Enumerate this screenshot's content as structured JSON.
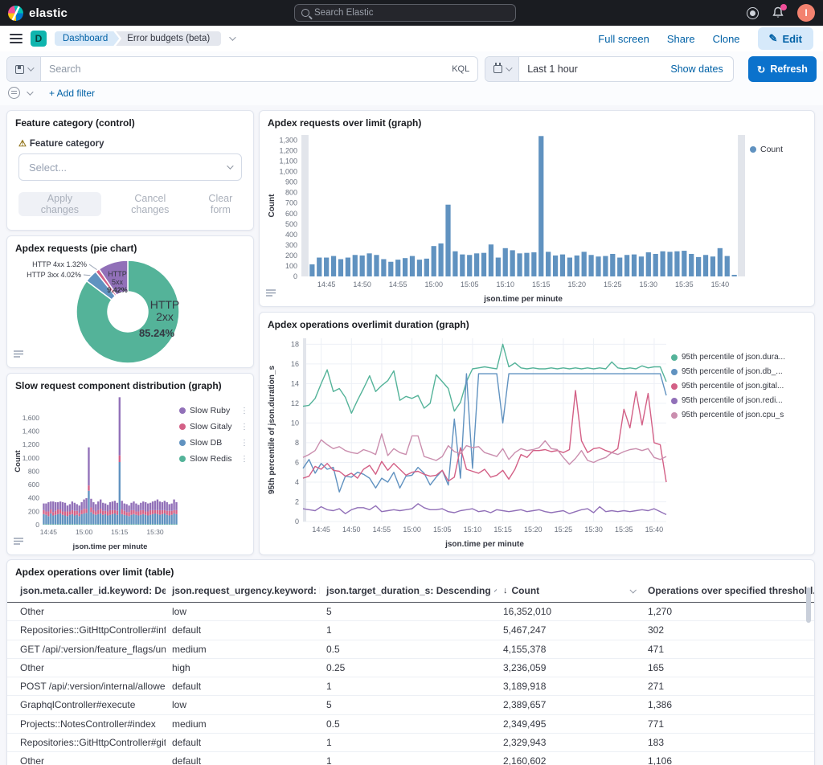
{
  "header": {
    "brand": "elastic",
    "search_placeholder": "Search Elastic",
    "avatar_initial": "I"
  },
  "navbar": {
    "space_badge": "D",
    "breadcrumbs": [
      "Dashboard",
      "Error budgets (beta)"
    ],
    "actions": {
      "full_screen": "Full screen",
      "share": "Share",
      "clone": "Clone",
      "edit": "Edit"
    }
  },
  "query_bar": {
    "search_placeholder": "Search",
    "kql_label": "KQL",
    "time_range": "Last 1 hour",
    "show_dates_label": "Show dates",
    "refresh_label": "Refresh",
    "add_filter_label": "+ Add filter"
  },
  "panels": {
    "control": {
      "title": "Feature category (control)",
      "field_label": "Feature category",
      "select_placeholder": "Select...",
      "apply_label": "Apply changes",
      "cancel_label": "Cancel changes",
      "clear_label": "Clear form"
    }
  },
  "chart_data": [
    {
      "type": "bar",
      "title": "Apdex requests over limit (graph)",
      "ylabel": "Count",
      "xlabel": "json.time per minute",
      "ylim": [
        0,
        1350
      ],
      "ystep": 100,
      "ymax_tick": 1300,
      "color": "#6092C0",
      "legend": [
        {
          "name": "Count",
          "color": "#6092C0"
        }
      ],
      "xticks": [
        {
          "i": 2,
          "label": "14:45"
        },
        {
          "i": 7,
          "label": "14:50"
        },
        {
          "i": 12,
          "label": "14:55"
        },
        {
          "i": 17,
          "label": "15:00"
        },
        {
          "i": 22,
          "label": "15:05"
        },
        {
          "i": 27,
          "label": "15:10"
        },
        {
          "i": 32,
          "label": "15:15"
        },
        {
          "i": 37,
          "label": "15:20"
        },
        {
          "i": 42,
          "label": "15:25"
        },
        {
          "i": 47,
          "label": "15:30"
        },
        {
          "i": 52,
          "label": "15:35"
        },
        {
          "i": 57,
          "label": "15:40"
        }
      ],
      "values": [
        115,
        180,
        180,
        195,
        165,
        180,
        205,
        200,
        220,
        205,
        165,
        140,
        160,
        175,
        195,
        160,
        170,
        290,
        315,
        685,
        240,
        210,
        205,
        220,
        225,
        305,
        180,
        270,
        250,
        220,
        225,
        230,
        1340,
        235,
        200,
        210,
        180,
        200,
        235,
        205,
        190,
        195,
        215,
        180,
        205,
        210,
        190,
        230,
        215,
        240,
        235,
        240,
        245,
        215,
        185,
        205,
        190,
        270,
        195,
        15
      ]
    },
    {
      "type": "pie",
      "title": "Apdex requests (pie chart)",
      "donut": true,
      "slices": [
        {
          "label": "HTTP 2xx",
          "value": 85.24,
          "color": "#54B399",
          "placement": "big"
        },
        {
          "label": "HTTP 3xx",
          "value": 4.02,
          "color": "#6092C0",
          "placement": "callout",
          "callout_slot": 1
        },
        {
          "label": "HTTP 4xx",
          "value": 1.32,
          "color": "#D36086",
          "placement": "callout",
          "callout_slot": 0
        },
        {
          "label": "HTTP 5xx",
          "value": 9.42,
          "color": "#9170B8",
          "placement": "small"
        }
      ]
    },
    {
      "type": "stacked_bar",
      "title": "Slow request component distribution (graph)",
      "ylabel": "Count",
      "xlabel": "json.time per minute",
      "ylim": [
        0,
        1900
      ],
      "ystep": 200,
      "legend_menu": true,
      "xticks": [
        {
          "i": 2,
          "label": "14:45"
        },
        {
          "i": 17,
          "label": "15:00"
        },
        {
          "i": 32,
          "label": "15:15"
        },
        {
          "i": 47,
          "label": "15:30"
        }
      ],
      "stack_order": [
        "Slow Redis",
        "Slow DB",
        "Slow Gitaly",
        "Slow Ruby"
      ],
      "series": [
        {
          "name": "Slow Ruby",
          "color": "#9170B8",
          "values": [
            100,
            120,
            140,
            120,
            160,
            130,
            110,
            120,
            140,
            130,
            90,
            110,
            130,
            120,
            100,
            110,
            120,
            140,
            160,
            570,
            130,
            120,
            110,
            130,
            140,
            120,
            110,
            100,
            120,
            130,
            140,
            120,
            870,
            130,
            110,
            120,
            100,
            110,
            130,
            120,
            100,
            110,
            130,
            140,
            120,
            110,
            130,
            140,
            160,
            130,
            120,
            140,
            130,
            100,
            110,
            160,
            120
          ]
        },
        {
          "name": "Slow Gitaly",
          "color": "#D36086",
          "values": [
            60,
            50,
            70,
            60,
            50,
            60,
            70,
            60,
            50,
            60,
            70,
            50,
            60,
            70,
            60,
            50,
            60,
            70,
            60,
            80,
            70,
            60,
            50,
            60,
            70,
            60,
            50,
            60,
            70,
            60,
            50,
            60,
            100,
            70,
            60,
            50,
            60,
            70,
            60,
            50,
            60,
            70,
            60,
            50,
            60,
            70,
            60,
            50,
            60,
            70,
            60,
            50,
            60,
            70,
            60,
            50,
            60
          ]
        },
        {
          "name": "Slow DB",
          "color": "#6092C0",
          "values": [
            150,
            140,
            120,
            160,
            130,
            140,
            150,
            160,
            140,
            130,
            120,
            140,
            150,
            130,
            140,
            120,
            150,
            160,
            170,
            500,
            180,
            150,
            140,
            150,
            160,
            140,
            150,
            130,
            140,
            150,
            160,
            140,
            930,
            150,
            140,
            130,
            120,
            140,
            150,
            140,
            130,
            140,
            150,
            140,
            130,
            140,
            150,
            160,
            150,
            140,
            150,
            160,
            140,
            130,
            140,
            160,
            150
          ]
        },
        {
          "name": "Slow Redis",
          "color": "#54B399",
          "values": [
            8,
            8,
            8,
            8,
            8,
            8,
            8,
            8,
            8,
            8,
            8,
            8,
            8,
            8,
            8,
            8,
            8,
            8,
            8,
            8,
            8,
            8,
            8,
            8,
            8,
            8,
            8,
            8,
            8,
            8,
            8,
            8,
            8,
            8,
            8,
            8,
            8,
            8,
            8,
            8,
            8,
            8,
            8,
            8,
            8,
            8,
            8,
            8,
            8,
            8,
            8,
            8,
            8,
            8,
            8,
            8,
            8
          ]
        }
      ]
    },
    {
      "type": "line",
      "title": "Apdex operations overlimit duration (graph)",
      "ylabel": "95th percentile of json.duration_s",
      "xlabel": "json.time per minute",
      "ylim": [
        0,
        18.6
      ],
      "ystep": 2,
      "xticks": [
        {
          "i": 3,
          "label": "14:45"
        },
        {
          "i": 8,
          "label": "14:50"
        },
        {
          "i": 13,
          "label": "14:55"
        },
        {
          "i": 18,
          "label": "15:00"
        },
        {
          "i": 23,
          "label": "15:05"
        },
        {
          "i": 28,
          "label": "15:10"
        },
        {
          "i": 33,
          "label": "15:15"
        },
        {
          "i": 38,
          "label": "15:20"
        },
        {
          "i": 43,
          "label": "15:25"
        },
        {
          "i": 48,
          "label": "15:30"
        },
        {
          "i": 53,
          "label": "15:35"
        },
        {
          "i": 58,
          "label": "15:40"
        }
      ],
      "series": [
        {
          "name": "95th percentile of json.dura...",
          "color": "#54B399",
          "values": [
            11.7,
            11.8,
            12.5,
            14.0,
            15.4,
            13.2,
            13.5,
            12.6,
            11.0,
            12.3,
            13.5,
            14.8,
            13.2,
            13.8,
            14.3,
            15.3,
            12.3,
            12.7,
            12.5,
            12.8,
            11.5,
            12.0,
            14.9,
            14.2,
            13.5,
            11.2,
            12.1,
            14.2,
            15.5,
            15.6,
            15.7,
            15.6,
            15.5,
            18.0,
            15.7,
            16.1,
            15.6,
            15.5,
            15.6,
            15.5,
            15.5,
            15.6,
            15.5,
            15.6,
            15.5,
            15.6,
            15.5,
            15.6,
            15.5,
            15.6,
            15.5,
            16.2,
            15.6,
            15.5,
            15.6,
            15.5,
            15.8,
            15.6,
            15.7,
            15.7,
            14.2
          ]
        },
        {
          "name": "95th percentile of json.db_...",
          "color": "#6092C0",
          "values": [
            5.4,
            6.3,
            4.9,
            5.9,
            5.3,
            5.5,
            3.0,
            4.6,
            4.5,
            5.0,
            4.8,
            4.4,
            3.4,
            4.4,
            4.0,
            5.0,
            3.4,
            4.6,
            4.7,
            5.5,
            4.9,
            3.7,
            4.5,
            5.2,
            3.7,
            10.4,
            4.4,
            15.0,
            5.4,
            15.0,
            15.0,
            15.0,
            15.0,
            10.0,
            15.0,
            15.0,
            15.0,
            15.0,
            15.0,
            15.0,
            15.0,
            15.0,
            15.0,
            15.0,
            15.0,
            15.0,
            15.0,
            15.0,
            15.0,
            15.0,
            15.0,
            15.0,
            15.0,
            15.0,
            15.0,
            15.0,
            15.0,
            15.0,
            15.0,
            15.0,
            12.8
          ]
        },
        {
          "name": "95th percentile of json.gital...",
          "color": "#D36086",
          "values": [
            4.4,
            4.6,
            5.6,
            5.3,
            5.9,
            5.2,
            5.1,
            4.6,
            4.9,
            4.4,
            5.3,
            5.7,
            4.8,
            6.1,
            5.2,
            5.9,
            5.3,
            4.7,
            5.0,
            5.1,
            4.8,
            4.6,
            4.7,
            5.2,
            4.1,
            4.5,
            7.5,
            5.3,
            5.1,
            4.9,
            5.3,
            4.5,
            4.7,
            5.2,
            4.3,
            5.3,
            6.8,
            6.5,
            7.2,
            7.2,
            7.3,
            7.1,
            7.2,
            7.0,
            7.3,
            13.3,
            8.2,
            7.0,
            7.4,
            7.5,
            7.2,
            7.0,
            7.4,
            11.4,
            9.5,
            13.2,
            9.8,
            13.0,
            8.0,
            7.8,
            4.0
          ]
        },
        {
          "name": "95th percentile of json.redi...",
          "color": "#9170B8",
          "values": [
            1.3,
            1.2,
            1.1,
            1.5,
            1.2,
            1.1,
            1.3,
            0.8,
            1.2,
            1.4,
            1.4,
            1.2,
            1.6,
            1.0,
            1.1,
            1.2,
            1.1,
            1.2,
            1.3,
            1.8,
            1.4,
            1.2,
            1.2,
            1.3,
            1.0,
            0.9,
            1.1,
            1.2,
            1.3,
            1.0,
            1.1,
            0.9,
            1.2,
            1.1,
            1.0,
            1.1,
            1.2,
            1.0,
            1.1,
            1.2,
            1.0,
            0.9,
            1.0,
            1.1,
            0.8,
            1.0,
            1.2,
            1.3,
            0.9,
            1.5,
            1.0,
            1.1,
            1.0,
            1.1,
            1.0,
            1.1,
            1.2,
            1.1,
            1.3,
            1.0,
            0.7
          ]
        },
        {
          "name": "95th percentile of json.cpu_s",
          "color": "#CA8EAE",
          "values": [
            6.5,
            6.8,
            7.2,
            8.3,
            7.8,
            7.4,
            7.6,
            7.2,
            7.0,
            6.9,
            7.3,
            7.1,
            6.8,
            8.9,
            6.7,
            7.4,
            7.0,
            6.8,
            8.7,
            8.7,
            6.6,
            6.4,
            6.2,
            6.6,
            7.7,
            7.1,
            6.9,
            7.7,
            7.5,
            7.6,
            7.0,
            6.8,
            6.6,
            7.4,
            6.3,
            7.0,
            7.4,
            7.2,
            7.3,
            7.5,
            8.2,
            7.4,
            7.3,
            6.5,
            5.8,
            6.4,
            7.2,
            6.2,
            6.0,
            6.3,
            6.5,
            7.0,
            6.8,
            7.1,
            7.3,
            7.4,
            7.2,
            7.4,
            6.5,
            6.3,
            6.6
          ]
        }
      ]
    }
  ],
  "table": {
    "title": "Apdex operations over limit (table)",
    "columns": [
      "json.meta.caller_id.keyword: Desce...",
      "json.request_urgency.keyword: Des...",
      "json.target_duration_s: Descending",
      "Count",
      "Operations over specified threshold..."
    ],
    "sorted_column_index": 3,
    "rows": [
      [
        "Other",
        "low",
        "5",
        "16,352,010",
        "1,270"
      ],
      [
        "Repositories::GitHttpController#info_refs",
        "default",
        "1",
        "5,467,247",
        "302"
      ],
      [
        "GET /api/:version/feature_flags/unleash...",
        "medium",
        "0.5",
        "4,155,378",
        "471"
      ],
      [
        "Other",
        "high",
        "0.25",
        "3,236,059",
        "165"
      ],
      [
        "POST /api/:version/internal/allowed",
        "default",
        "1",
        "3,189,918",
        "271"
      ],
      [
        "GraphqlController#execute",
        "low",
        "5",
        "2,389,657",
        "1,386"
      ],
      [
        "Projects::NotesController#index",
        "medium",
        "0.5",
        "2,349,495",
        "771"
      ],
      [
        "Repositories::GitHttpController#git_upl...",
        "default",
        "1",
        "2,329,943",
        "183"
      ],
      [
        "Other",
        "default",
        "1",
        "2,160,602",
        "1,106"
      ]
    ]
  }
}
